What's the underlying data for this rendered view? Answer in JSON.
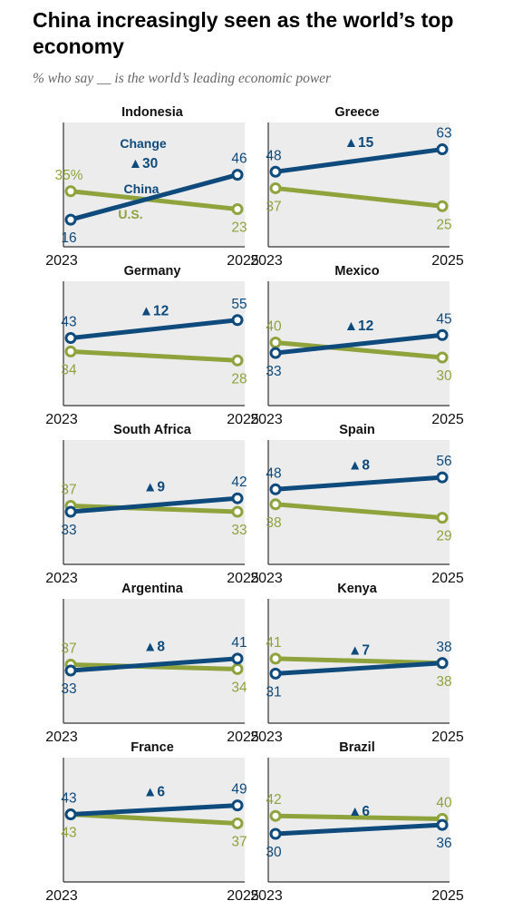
{
  "title": "China increasingly seen as the world’s top economy",
  "subtitle": "% who say __ is the world’s leading economic power",
  "legend": {
    "change_label": "Change",
    "china_label": "China",
    "us_label": "U.S."
  },
  "colors": {
    "china": "#0e4a7b",
    "us": "#8ea33c",
    "panel_bg": "#ececec",
    "axis": "#333333",
    "text": "#222222"
  },
  "chart_data": {
    "type": "line",
    "x": [
      "2023",
      "2025"
    ],
    "ylim": [
      10,
      70
    ],
    "series_names": [
      "China",
      "U.S."
    ],
    "panels": [
      {
        "country": "Indonesia",
        "china": [
          16,
          46
        ],
        "us": [
          35,
          23
        ],
        "change": "▲30",
        "us_first_label": "35%"
      },
      {
        "country": "Greece",
        "china": [
          48,
          63
        ],
        "us": [
          37,
          25
        ],
        "change": "▲15"
      },
      {
        "country": "Germany",
        "china": [
          43,
          55
        ],
        "us": [
          34,
          28
        ],
        "change": "▲12"
      },
      {
        "country": "Mexico",
        "china": [
          33,
          45
        ],
        "us": [
          40,
          30
        ],
        "change": "▲12"
      },
      {
        "country": "South Africa",
        "china": [
          33,
          42
        ],
        "us": [
          37,
          33
        ],
        "change": "▲9"
      },
      {
        "country": "Spain",
        "china": [
          48,
          56
        ],
        "us": [
          38,
          29
        ],
        "change": "▲8"
      },
      {
        "country": "Argentina",
        "china": [
          33,
          41
        ],
        "us": [
          37,
          34
        ],
        "change": "▲8"
      },
      {
        "country": "Kenya",
        "china": [
          31,
          38
        ],
        "us": [
          41,
          38
        ],
        "change": "▲7"
      },
      {
        "country": "France",
        "china": [
          43,
          49
        ],
        "us": [
          43,
          37
        ],
        "change": "▲6"
      },
      {
        "country": "Brazil",
        "china": [
          30,
          36
        ],
        "us": [
          42,
          40
        ],
        "change": "▲6"
      }
    ]
  }
}
